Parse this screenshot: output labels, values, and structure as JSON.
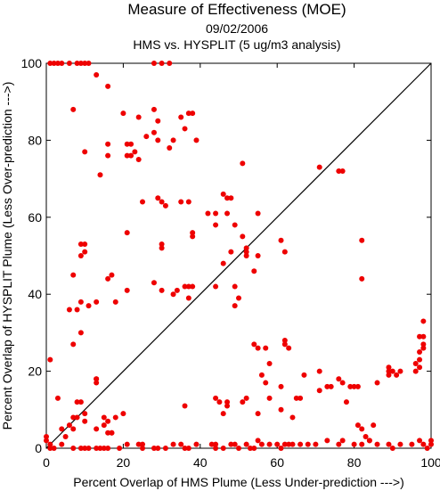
{
  "chart_data": {
    "type": "scatter",
    "title": "Measure of Effectiveness (MOE)",
    "subtitle_lines": [
      "09/02/2006",
      "HMS vs. HYSPLIT  (5 ug/m3 analysis)"
    ],
    "xlabel": "Percent Overlap of HMS Plume (Less Under-prediction --->)",
    "ylabel": "Percent Overlap of HYSPLIT Plume (Less Over-prediction --->)",
    "xlim": [
      0,
      100
    ],
    "ylim": [
      0,
      100
    ],
    "xticks": [
      "0",
      "20",
      "40",
      "60",
      "80",
      "100"
    ],
    "yticks": [
      "0",
      "20",
      "40",
      "60",
      "80",
      "100"
    ],
    "reference_line": {
      "from": [
        0,
        0
      ],
      "to": [
        100,
        100
      ],
      "color": "#000000"
    },
    "marker_color": "#ee0000",
    "points": [
      [
        1,
        100
      ],
      [
        2,
        100
      ],
      [
        3,
        100
      ],
      [
        4,
        100
      ],
      [
        6,
        100
      ],
      [
        8,
        100
      ],
      [
        9,
        100
      ],
      [
        10,
        100
      ],
      [
        11,
        100
      ],
      [
        28,
        100
      ],
      [
        30,
        100
      ],
      [
        32,
        100
      ],
      [
        13,
        97
      ],
      [
        16,
        94
      ],
      [
        7,
        88
      ],
      [
        20,
        87
      ],
      [
        28,
        88
      ],
      [
        37,
        87
      ],
      [
        38,
        87
      ],
      [
        24,
        86
      ],
      [
        35,
        86
      ],
      [
        29,
        85
      ],
      [
        36,
        83
      ],
      [
        28,
        82
      ],
      [
        29,
        80
      ],
      [
        33,
        80
      ],
      [
        39,
        80
      ],
      [
        26,
        81
      ],
      [
        21,
        79
      ],
      [
        22,
        79
      ],
      [
        16,
        79
      ],
      [
        23,
        77
      ],
      [
        10,
        77
      ],
      [
        21,
        76
      ],
      [
        22,
        76
      ],
      [
        16,
        76
      ],
      [
        24,
        75
      ],
      [
        32,
        78
      ],
      [
        14,
        71
      ],
      [
        51,
        74
      ],
      [
        71,
        73
      ],
      [
        76,
        72
      ],
      [
        77,
        72
      ],
      [
        29,
        65
      ],
      [
        30,
        64
      ],
      [
        31,
        63
      ],
      [
        35,
        64
      ],
      [
        25,
        64
      ],
      [
        37,
        64
      ],
      [
        42,
        61
      ],
      [
        44,
        61
      ],
      [
        47,
        61
      ],
      [
        46,
        66
      ],
      [
        47,
        65
      ],
      [
        48,
        65
      ],
      [
        55,
        61
      ],
      [
        44,
        58
      ],
      [
        49,
        58
      ],
      [
        51,
        55
      ],
      [
        21,
        56
      ],
      [
        38,
        56
      ],
      [
        38,
        55
      ],
      [
        30,
        53
      ],
      [
        9,
        53
      ],
      [
        10,
        53
      ],
      [
        30,
        52
      ],
      [
        52,
        52
      ],
      [
        48,
        51
      ],
      [
        52,
        51
      ],
      [
        61,
        54
      ],
      [
        62,
        51
      ],
      [
        10,
        51
      ],
      [
        9,
        50
      ],
      [
        52,
        50
      ],
      [
        55,
        50
      ],
      [
        46,
        48
      ],
      [
        7,
        45
      ],
      [
        17,
        45
      ],
      [
        16,
        44
      ],
      [
        28,
        43
      ],
      [
        54,
        46
      ],
      [
        82,
        54
      ],
      [
        82,
        44
      ],
      [
        30,
        41
      ],
      [
        34,
        41
      ],
      [
        36,
        42
      ],
      [
        37,
        42
      ],
      [
        38,
        42
      ],
      [
        44,
        42
      ],
      [
        49,
        42
      ],
      [
        21,
        41
      ],
      [
        13,
        38
      ],
      [
        18,
        38
      ],
      [
        11,
        37
      ],
      [
        6,
        36
      ],
      [
        8,
        36
      ],
      [
        9,
        38
      ],
      [
        33,
        40
      ],
      [
        50,
        39
      ],
      [
        37,
        39
      ],
      [
        49,
        37
      ],
      [
        7,
        27
      ],
      [
        9,
        30
      ],
      [
        1,
        23
      ],
      [
        13,
        17
      ],
      [
        13,
        18
      ],
      [
        13,
        18
      ],
      [
        3,
        13
      ],
      [
        10,
        9
      ],
      [
        7,
        8
      ],
      [
        8,
        8
      ],
      [
        8,
        12
      ],
      [
        9,
        12
      ],
      [
        10,
        7
      ],
      [
        7,
        5
      ],
      [
        4,
        5
      ],
      [
        5,
        3
      ],
      [
        6,
        6
      ],
      [
        13,
        5
      ],
      [
        15,
        8
      ],
      [
        16,
        4
      ],
      [
        17,
        4
      ],
      [
        18,
        8
      ],
      [
        20,
        9
      ],
      [
        15,
        6
      ],
      [
        16,
        7
      ],
      [
        17,
        4
      ],
      [
        54,
        27
      ],
      [
        55,
        26
      ],
      [
        57,
        26
      ],
      [
        62,
        28
      ],
      [
        62,
        27
      ],
      [
        63,
        26
      ],
      [
        58,
        22
      ],
      [
        56,
        19
      ],
      [
        57,
        17
      ],
      [
        55,
        9
      ],
      [
        58,
        13
      ],
      [
        61,
        16
      ],
      [
        61,
        10
      ],
      [
        64,
        8
      ],
      [
        65,
        13
      ],
      [
        66,
        13
      ],
      [
        67,
        19
      ],
      [
        71,
        15
      ],
      [
        71,
        20
      ],
      [
        73,
        16
      ],
      [
        74,
        16
      ],
      [
        76,
        18
      ],
      [
        77,
        17
      ],
      [
        78,
        12
      ],
      [
        79,
        16
      ],
      [
        80,
        16
      ],
      [
        81,
        16
      ],
      [
        81,
        6
      ],
      [
        82,
        5
      ],
      [
        83,
        3
      ],
      [
        84,
        2
      ],
      [
        77,
        2
      ],
      [
        85,
        6
      ],
      [
        86,
        17
      ],
      [
        89,
        20
      ],
      [
        89,
        21
      ],
      [
        90,
        20
      ],
      [
        92,
        20
      ],
      [
        91,
        19
      ],
      [
        96,
        20
      ],
      [
        97,
        21
      ],
      [
        97,
        23
      ],
      [
        97,
        25
      ],
      [
        98,
        26
      ],
      [
        98,
        27
      ],
      [
        98,
        29
      ],
      [
        97,
        29
      ],
      [
        98,
        33
      ],
      [
        96,
        22
      ],
      [
        89,
        19
      ],
      [
        44,
        13
      ],
      [
        45,
        12
      ],
      [
        47,
        12
      ],
      [
        46,
        9
      ],
      [
        47,
        11
      ],
      [
        52,
        13
      ],
      [
        51,
        12
      ],
      [
        36,
        11
      ],
      [
        0,
        3
      ],
      [
        0,
        2
      ],
      [
        1,
        1
      ],
      [
        1,
        0
      ],
      [
        2,
        0
      ],
      [
        4,
        1
      ],
      [
        7,
        0
      ],
      [
        9,
        0
      ],
      [
        10,
        0
      ],
      [
        11,
        0
      ],
      [
        13,
        0
      ],
      [
        14,
        0
      ],
      [
        15,
        0
      ],
      [
        16,
        0
      ],
      [
        19,
        0
      ],
      [
        21,
        1
      ],
      [
        24,
        1
      ],
      [
        25,
        1
      ],
      [
        25,
        0
      ],
      [
        28,
        0
      ],
      [
        29,
        0
      ],
      [
        31,
        0
      ],
      [
        33,
        1
      ],
      [
        35,
        1
      ],
      [
        36,
        0
      ],
      [
        37,
        0
      ],
      [
        39,
        1
      ],
      [
        43,
        1
      ],
      [
        44,
        1
      ],
      [
        44,
        0
      ],
      [
        46,
        0
      ],
      [
        48,
        1
      ],
      [
        49,
        1
      ],
      [
        50,
        0
      ],
      [
        52,
        1
      ],
      [
        53,
        0
      ],
      [
        54,
        0
      ],
      [
        55,
        2
      ],
      [
        56,
        1
      ],
      [
        58,
        1
      ],
      [
        60,
        1
      ],
      [
        61,
        0
      ],
      [
        62,
        1
      ],
      [
        63,
        1
      ],
      [
        64,
        1
      ],
      [
        66,
        1
      ],
      [
        68,
        1
      ],
      [
        70,
        1
      ],
      [
        73,
        2
      ],
      [
        76,
        1
      ],
      [
        80,
        1
      ],
      [
        82,
        1
      ],
      [
        84,
        2
      ],
      [
        86,
        1
      ],
      [
        89,
        1
      ],
      [
        90,
        0
      ],
      [
        92,
        1
      ],
      [
        95,
        1
      ],
      [
        97,
        2
      ],
      [
        98,
        1
      ],
      [
        99,
        0
      ],
      [
        100,
        1
      ],
      [
        100,
        2
      ]
    ]
  }
}
